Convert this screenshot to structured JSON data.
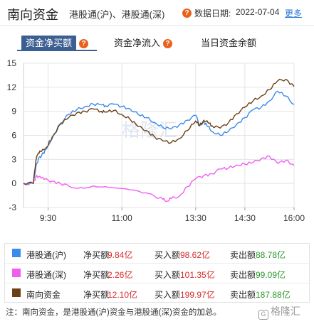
{
  "header": {
    "title": "南向资金",
    "subtitle": "港股通(沪)、港股通(深)",
    "date_label": "数据日期:",
    "date_value": "2022-07-04",
    "more_label": "更多"
  },
  "tabs": [
    {
      "label": "资金净买额",
      "active": true
    },
    {
      "label": "资金净流入",
      "active": false
    },
    {
      "label": "当日资金余额",
      "active": false
    }
  ],
  "help_icon": "question-mark-icon",
  "colors": {
    "sh": "#3b8beb",
    "sz": "#f05ef0",
    "total": "#6b3f16",
    "tab_active": "#3c5f91",
    "positive": "#d52b2b",
    "negative": "#2e9a2e"
  },
  "chart_data": {
    "type": "line",
    "x_ticks": [
      "9:30",
      "11:00",
      "13:30",
      "14:30",
      "16:00"
    ],
    "y_ticks": [
      15,
      12,
      9,
      6,
      3,
      0,
      -3
    ],
    "ylim": [
      -3,
      15
    ],
    "grid": true,
    "series": [
      {
        "name": "港股通(沪)",
        "x": [
          0,
          12,
          15,
          18,
          22,
          28,
          35,
          45,
          55,
          65,
          75,
          85,
          95,
          100,
          110,
          120,
          130,
          140,
          150,
          160,
          170,
          180,
          190,
          200,
          210,
          215,
          220,
          225,
          230,
          240,
          250,
          260,
          270,
          280,
          290,
          300,
          310,
          320,
          330
        ],
        "values": [
          0,
          0,
          2.0,
          3.0,
          3.5,
          4.3,
          5.6,
          7.5,
          8.6,
          9.2,
          9.6,
          9.9,
          9.8,
          9.7,
          9.9,
          9.6,
          9.3,
          8.6,
          8.2,
          7.6,
          7.0,
          6.8,
          7.3,
          7.9,
          8.5,
          7.3,
          7.6,
          7.1,
          6.5,
          6.0,
          6.5,
          7.4,
          8.2,
          9.2,
          9.5,
          10.3,
          11.5,
          10.9,
          9.84
        ]
      },
      {
        "name": "港股通(深)",
        "x": [
          0,
          12,
          15,
          20,
          25,
          35,
          45,
          55,
          70,
          85,
          100,
          115,
          130,
          145,
          160,
          170,
          175,
          180,
          190,
          200,
          210,
          220,
          230,
          240,
          250,
          260,
          270,
          280,
          290,
          300,
          310,
          320,
          330
        ],
        "values": [
          0,
          0,
          0.8,
          0.9,
          0.5,
          0.3,
          0,
          -0.3,
          -0.5,
          -0.3,
          -0.4,
          -0.6,
          -0.8,
          -1.2,
          -1.6,
          -2.0,
          -2.2,
          -1.9,
          -1.6,
          -0.4,
          0.6,
          1.0,
          1.2,
          1.8,
          1.9,
          2.3,
          2.4,
          2.6,
          3.1,
          3.4,
          2.5,
          2.9,
          2.26
        ]
      },
      {
        "name": "南向资金",
        "x": [
          0,
          12,
          15,
          18,
          22,
          28,
          35,
          45,
          55,
          65,
          75,
          85,
          95,
          100,
          110,
          120,
          130,
          140,
          150,
          160,
          170,
          180,
          190,
          200,
          210,
          215,
          220,
          225,
          230,
          240,
          250,
          260,
          270,
          280,
          290,
          300,
          310,
          320,
          330
        ],
        "values": [
          0,
          0,
          2.8,
          3.8,
          4.0,
          4.5,
          5.8,
          7.4,
          8.2,
          8.8,
          9.0,
          9.3,
          9.0,
          8.9,
          9.1,
          8.6,
          8.0,
          7.1,
          6.6,
          5.8,
          5.3,
          5.1,
          5.6,
          6.6,
          7.8,
          7.2,
          7.9,
          7.6,
          7.2,
          6.9,
          7.6,
          8.7,
          9.5,
          10.3,
          10.9,
          11.7,
          12.8,
          13.0,
          12.1
        ]
      }
    ],
    "watermark": "格隆汇"
  },
  "legend": [
    {
      "name": "港股通(沪)",
      "net_label": "净买额",
      "net_value": "9.84亿",
      "buy_label": "买入额",
      "buy_value": "98.62亿",
      "sell_label": "卖出额",
      "sell_value": "88.78亿"
    },
    {
      "name": "港股通(深)",
      "net_label": "净买额",
      "net_value": "2.26亿",
      "buy_label": "买入额",
      "buy_value": "101.35亿",
      "sell_label": "卖出额",
      "sell_value": "99.09亿"
    },
    {
      "name": "南向资金",
      "net_label": "净买额",
      "net_value": "12.10亿",
      "buy_label": "买入额",
      "buy_value": "199.97亿",
      "sell_label": "卖出额",
      "sell_value": "187.88亿"
    }
  ],
  "note": "注：南向资金，是港股通(沪)资金与港股通(深)资金的加总。",
  "brand": "格隆汇"
}
